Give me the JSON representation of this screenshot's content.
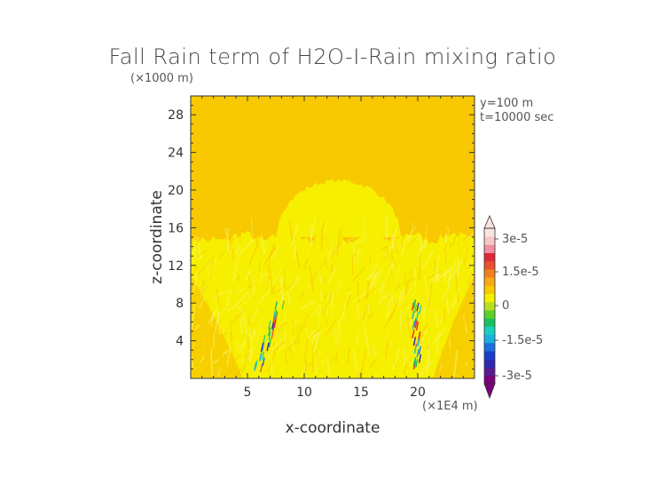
{
  "chart_data": {
    "type": "heatmap",
    "title": "Fall Rain term of H2O-I-Rain mixing ratio",
    "xlabel": "x-coordinate",
    "ylabel": "z-coordinate",
    "x_scale_label": "(×1E4 m)",
    "y_scale_label": "(×1000 m)",
    "annotations": [
      "y=100 m",
      "t=10000 sec"
    ],
    "xlim": [
      0,
      25
    ],
    "ylim": [
      0,
      30
    ],
    "x_ticks": [
      5,
      10,
      15,
      20
    ],
    "y_ticks": [
      4,
      8,
      12,
      16,
      20,
      24,
      28
    ],
    "colorbar": {
      "min": -3e-05,
      "max": 3e-05,
      "tick_labels": [
        "3e-5",
        "1.5e-5",
        "0",
        "-1.5e-5",
        "-3e-5"
      ],
      "tick_values": [
        3e-05,
        1.5e-05,
        0,
        -1.5e-05,
        -3e-05
      ],
      "colors": [
        "#7a007a",
        "#5a1a90",
        "#3028b0",
        "#1a3ccc",
        "#1e6ee0",
        "#19b0e0",
        "#18d0c0",
        "#18c060",
        "#5cd12a",
        "#b8e020",
        "#f6f000",
        "#f8c800",
        "#f8a818",
        "#f08020",
        "#e85030",
        "#e02838",
        "#f090a0",
        "#f8c8c8",
        "#fbe4e0"
      ]
    },
    "field_description": {
      "background_value": 0,
      "background_color": "#f8c800",
      "cloud_region_color": "#f6f000",
      "cloud_top_z": 16,
      "anvil_top_z": 21,
      "cloud_x_range": [
        0,
        25
      ],
      "updraft_cores_x": [
        7.8,
        19.8
      ],
      "updraft_cores_z_range": [
        0.5,
        7.5
      ]
    }
  }
}
